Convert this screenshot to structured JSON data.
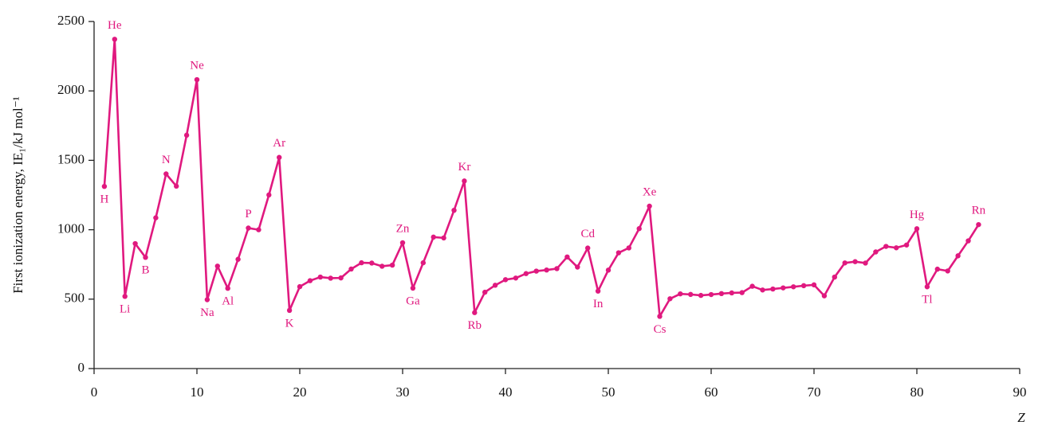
{
  "chart_data": {
    "type": "line",
    "x_label": "Z",
    "y_label": "First ionization energy, IE₁/kJ mol⁻¹",
    "xlim": [
      0,
      90
    ],
    "xticks": [
      0,
      10,
      20,
      30,
      40,
      50,
      60,
      70,
      80,
      90
    ],
    "ylim": [
      0,
      2500
    ],
    "yticks": [
      0,
      500,
      1000,
      1500,
      2000,
      2500
    ],
    "x": [
      1,
      2,
      3,
      4,
      5,
      6,
      7,
      8,
      9,
      10,
      11,
      12,
      13,
      14,
      15,
      16,
      17,
      18,
      19,
      20,
      21,
      22,
      23,
      24,
      25,
      26,
      27,
      28,
      29,
      30,
      31,
      32,
      33,
      34,
      35,
      36,
      37,
      38,
      39,
      40,
      41,
      42,
      43,
      44,
      45,
      46,
      47,
      48,
      49,
      50,
      51,
      52,
      53,
      54,
      55,
      56,
      57,
      58,
      59,
      60,
      61,
      62,
      63,
      64,
      65,
      66,
      67,
      68,
      69,
      70,
      71,
      72,
      73,
      74,
      75,
      76,
      77,
      78,
      79,
      80,
      81,
      82,
      83,
      84,
      85,
      86
    ],
    "series": [
      {
        "color": "#e0197f",
        "values": [
          1312,
          2372,
          520,
          900,
          801,
          1086,
          1402,
          1314,
          1681,
          2081,
          496,
          738,
          578,
          787,
          1012,
          1000,
          1251,
          1521,
          419,
          590,
          633,
          659,
          651,
          653,
          717,
          762,
          760,
          737,
          745,
          906,
          579,
          762,
          947,
          941,
          1140,
          1351,
          403,
          550,
          600,
          640,
          652,
          684,
          702,
          710,
          720,
          804,
          731,
          868,
          558,
          709,
          834,
          869,
          1008,
          1170,
          376,
          503,
          538,
          534,
          527,
          533,
          540,
          545,
          547,
          593,
          566,
          573,
          581,
          589,
          597,
          603,
          524,
          659,
          761,
          770,
          760,
          840,
          880,
          870,
          890,
          1007,
          589,
          716,
          703,
          812,
          920,
          1037
        ],
        "point_labels": [
          "H",
          "He",
          "Li",
          null,
          "B",
          null,
          "N",
          null,
          null,
          "Ne",
          "Na",
          null,
          "Al",
          null,
          "P",
          null,
          null,
          "Ar",
          "K",
          null,
          null,
          null,
          null,
          null,
          null,
          null,
          null,
          null,
          null,
          "Zn",
          "Ga",
          null,
          null,
          null,
          null,
          "Kr",
          "Rb",
          null,
          null,
          null,
          null,
          null,
          null,
          null,
          null,
          null,
          null,
          "Cd",
          "In",
          null,
          null,
          null,
          null,
          "Xe",
          "Cs",
          null,
          null,
          null,
          null,
          null,
          null,
          null,
          null,
          null,
          null,
          null,
          null,
          null,
          null,
          null,
          null,
          null,
          null,
          null,
          null,
          null,
          null,
          null,
          null,
          "Hg",
          "Tl",
          null,
          null,
          null,
          null,
          "Rn"
        ]
      }
    ]
  }
}
